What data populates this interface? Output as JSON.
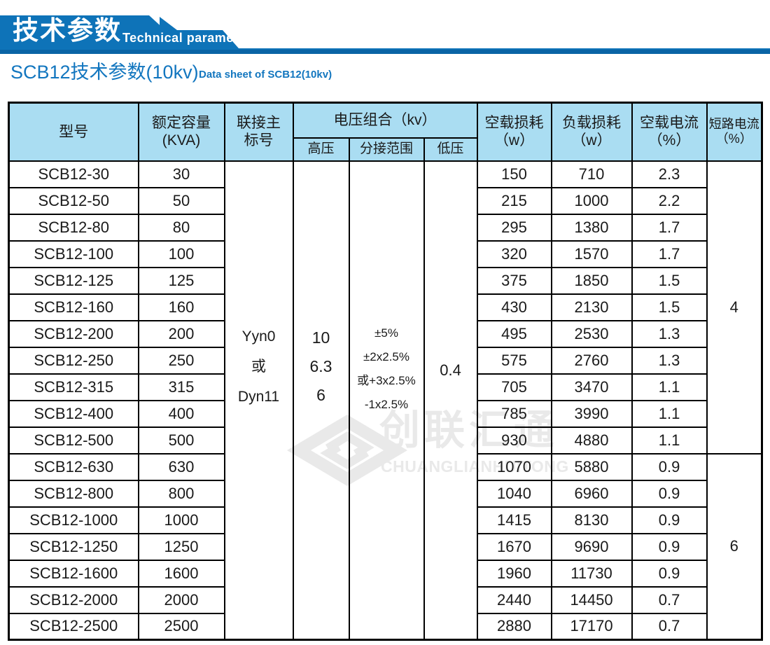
{
  "banner": {
    "title_cn": "技术参数",
    "title_en": "Technical parameter",
    "color": "#0e73b8",
    "color_dark": "#0a64a5"
  },
  "subtitle": {
    "cn": "SCB12技术参数(10kv)",
    "en": "Data sheet of SCB12(10kv)",
    "color": "#1276bf"
  },
  "watermark": {
    "logo": "diamond-logo",
    "cn": "创联汇通",
    "en": "CHUANGLIANHUITONG",
    "color": "#e9e9e9"
  },
  "table": {
    "colors": {
      "header_bg": "#aaddf2",
      "border": "#000000",
      "text": "#1a1a1a"
    },
    "header": {
      "model": "型号",
      "capacity_l1": "额定容量",
      "capacity_l2": "(KVA)",
      "connection_l1": "联接主",
      "connection_l2": "标号",
      "voltage_group": "电压组合（kv）",
      "hv": "高压",
      "tap": "分接范围",
      "lv": "低压",
      "noload_loss_l1": "空载损耗",
      "noload_loss_l2": "（w）",
      "load_loss_l1": "负载损耗",
      "load_loss_l2": "（w）",
      "noload_current_l1": "空载电流",
      "noload_current_l2": "（%）",
      "short_circuit_l1": "短路电流",
      "short_circuit_l2": "（%）"
    },
    "merged": {
      "connection_lines": [
        "Yyn0",
        "或",
        "Dyn11"
      ],
      "hv_lines": [
        "10",
        "6.3",
        "6"
      ],
      "tap_lines": [
        "±5%",
        "±2x2.5%",
        "或+3x2.5%",
        "-1x2.5%"
      ],
      "lv": "0.4",
      "short_circuit": [
        {
          "value": "4",
          "rows": 11
        },
        {
          "value": "6",
          "rows": 7
        }
      ]
    },
    "rows": [
      {
        "model": "SCB12-30",
        "kva": "30",
        "noload": "150",
        "load": "710",
        "current": "2.3"
      },
      {
        "model": "SCB12-50",
        "kva": "50",
        "noload": "215",
        "load": "1000",
        "current": "2.2"
      },
      {
        "model": "SCB12-80",
        "kva": "80",
        "noload": "295",
        "load": "1380",
        "current": "1.7"
      },
      {
        "model": "SCB12-100",
        "kva": "100",
        "noload": "320",
        "load": "1570",
        "current": "1.7"
      },
      {
        "model": "SCB12-125",
        "kva": "125",
        "noload": "375",
        "load": "1850",
        "current": "1.5"
      },
      {
        "model": "SCB12-160",
        "kva": "160",
        "noload": "430",
        "load": "2130",
        "current": "1.5"
      },
      {
        "model": "SCB12-200",
        "kva": "200",
        "noload": "495",
        "load": "2530",
        "current": "1.3"
      },
      {
        "model": "SCB12-250",
        "kva": "250",
        "noload": "575",
        "load": "2760",
        "current": "1.3"
      },
      {
        "model": "SCB12-315",
        "kva": "315",
        "noload": "705",
        "load": "3470",
        "current": "1.1"
      },
      {
        "model": "SCB12-400",
        "kva": "400",
        "noload": "785",
        "load": "3990",
        "current": "1.1"
      },
      {
        "model": "SCB12-500",
        "kva": "500",
        "noload": "930",
        "load": "4880",
        "current": "1.1"
      },
      {
        "model": "SCB12-630",
        "kva": "630",
        "noload": "1070",
        "load": "5880",
        "current": "0.9"
      },
      {
        "model": "SCB12-800",
        "kva": "800",
        "noload": "1040",
        "load": "6960",
        "current": "0.9"
      },
      {
        "model": "SCB12-1000",
        "kva": "1000",
        "noload": "1415",
        "load": "8130",
        "current": "0.9"
      },
      {
        "model": "SCB12-1250",
        "kva": "1250",
        "noload": "1670",
        "load": "9690",
        "current": "0.9"
      },
      {
        "model": "SCB12-1600",
        "kva": "1600",
        "noload": "1960",
        "load": "11730",
        "current": "0.9"
      },
      {
        "model": "SCB12-2000",
        "kva": "2000",
        "noload": "2440",
        "load": "14450",
        "current": "0.7"
      },
      {
        "model": "SCB12-2500",
        "kva": "2500",
        "noload": "2880",
        "load": "17170",
        "current": "0.7"
      }
    ]
  }
}
